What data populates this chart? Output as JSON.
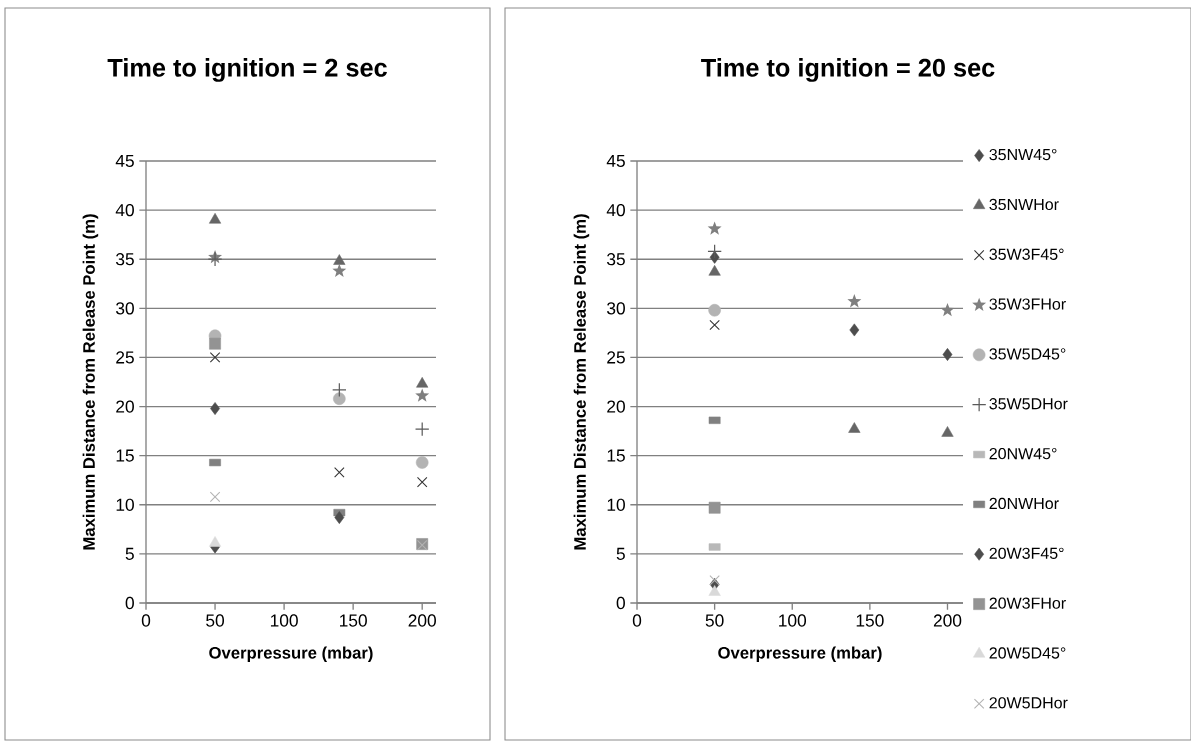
{
  "chart_data": [
    {
      "type": "scatter",
      "title": "Time to ignition = 2 sec",
      "xlabel": "Overpressure (mbar)",
      "ylabel": "Maximum Distance from Release Point (m)",
      "x": [
        50,
        140,
        200
      ],
      "xlim": [
        0,
        210
      ],
      "ylim": [
        0,
        45
      ],
      "xticks": [
        0,
        50,
        100,
        150,
        200
      ],
      "yticks": [
        0,
        5,
        10,
        15,
        20,
        25,
        30,
        35,
        40,
        45
      ],
      "grid": "y",
      "legend": false,
      "series": [
        {
          "color": "#4d4d4d",
          "marker": "diamond",
          "values": [
            19.8,
            null,
            null
          ]
        },
        {
          "color": "#666666",
          "marker": "triangle",
          "values": [
            39.0,
            34.8,
            22.3
          ]
        },
        {
          "color": "#333333",
          "marker": "cross",
          "values": [
            25.0,
            13.3,
            12.3
          ]
        },
        {
          "color": "#7f7f7f",
          "marker": "star",
          "values": [
            35.2,
            33.8,
            21.1
          ]
        },
        {
          "color": "#b3b3b3",
          "marker": "circle",
          "values": [
            27.2,
            20.8,
            14.3
          ]
        },
        {
          "color": "#595959",
          "marker": "plus",
          "values": [
            35.0,
            21.7,
            17.7
          ]
        },
        {
          "color": "#b8b8b8",
          "values": [
            null,
            null,
            null
          ]
        },
        {
          "color": "#808080",
          "values": [
            14.3,
            9.2,
            null
          ]
        },
        {
          "color": "#4d4d4d",
          "marker": "diamond",
          "values": [
            5.7,
            8.7,
            null
          ]
        },
        {
          "color": "#939393",
          "marker": "square",
          "values": [
            26.4,
            null,
            6.0
          ]
        },
        {
          "color": "#d9d9d9",
          "marker": "triangle",
          "values": [
            6.1,
            null,
            null
          ]
        },
        {
          "color": "#b3b3b3",
          "marker": "cross",
          "values": [
            10.8,
            null,
            5.9
          ]
        }
      ]
    },
    {
      "type": "scatter",
      "title": "Time to ignition = 20 sec",
      "xlabel": "Overpressure (mbar)",
      "ylabel": "Maximum Distance from Release Point (m)",
      "x": [
        50,
        140,
        200
      ],
      "xlim": [
        0,
        210
      ],
      "ylim": [
        0,
        45
      ],
      "xticks": [
        0,
        50,
        100,
        150,
        200
      ],
      "yticks": [
        0,
        5,
        10,
        15,
        20,
        25,
        30,
        35,
        40,
        45
      ],
      "grid": "y",
      "legend": "right",
      "series": [
        {
          "name": "35NW45°",
          "color": "#4d4d4d",
          "marker": "diamond",
          "values": [
            35.2,
            27.8,
            25.3
          ]
        },
        {
          "name": "35NWHor",
          "color": "#666666",
          "marker": "triangle",
          "values": [
            33.7,
            17.7,
            17.3
          ]
        },
        {
          "name": "35W3F45°",
          "color": "#333333",
          "marker": "cross",
          "values": [
            28.3,
            null,
            null
          ]
        },
        {
          "name": "35W3FHor",
          "color": "#7f7f7f",
          "marker": "star",
          "values": [
            38.1,
            30.7,
            29.8
          ]
        },
        {
          "name": "35W5D45°",
          "color": "#b3b3b3",
          "marker": "circle",
          "values": [
            29.8,
            null,
            null
          ]
        },
        {
          "name": "35W5DHor",
          "color": "#595959",
          "marker": "plus",
          "values": [
            35.8,
            null,
            null
          ]
        },
        {
          "name": "20NW45°",
          "color": "#b8b8b8",
          "values": [
            5.7,
            null,
            null
          ]
        },
        {
          "name": "20NWHor",
          "color": "#808080",
          "values": [
            18.6,
            null,
            null
          ]
        },
        {
          "name": "20W3F45°",
          "color": "#4d4d4d",
          "marker": "diamond",
          "values": [
            1.9,
            null,
            null
          ]
        },
        {
          "name": "20W3FHor",
          "color": "#939393",
          "marker": "square",
          "values": [
            9.7,
            null,
            null
          ]
        },
        {
          "name": "20W5D45°",
          "color": "#d9d9d9",
          "marker": "triangle",
          "values": [
            1.1,
            null,
            null
          ]
        },
        {
          "name": "20W5DHor",
          "color": "#b3b3b3",
          "marker": "cross",
          "values": [
            2.3,
            null,
            null
          ]
        }
      ]
    }
  ]
}
